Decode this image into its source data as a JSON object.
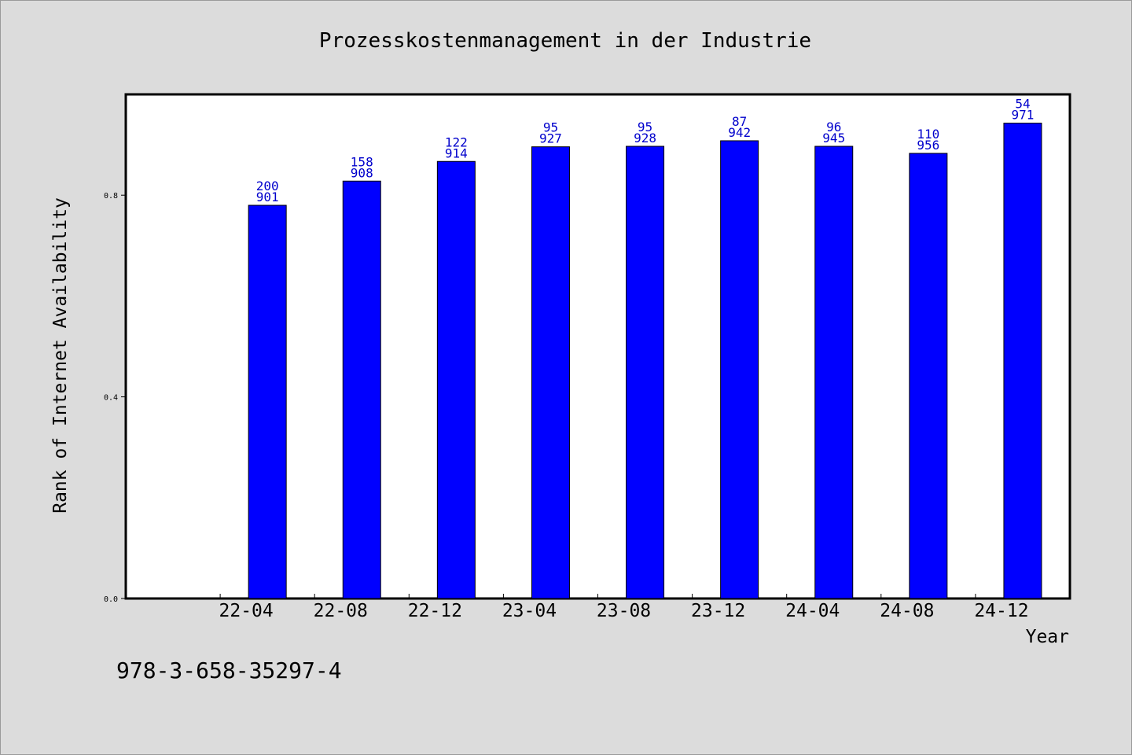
{
  "chart_data": {
    "type": "bar",
    "title": "Prozesskostenmanagement in der Industrie",
    "xlabel": "Year",
    "ylabel": "Rank of Internet Availability",
    "categories": [
      "22-04",
      "22-08",
      "22-12",
      "23-04",
      "23-08",
      "23-12",
      "24-04",
      "24-08",
      "24-12"
    ],
    "values": [
      0.78,
      0.828,
      0.867,
      0.896,
      0.897,
      0.908,
      0.897,
      0.883,
      0.943
    ],
    "rank_labels": [
      "200",
      "158",
      "122",
      "95",
      "95",
      "87",
      "96",
      "110",
      "54"
    ],
    "value_labels": [
      "901",
      "908",
      "914",
      "927",
      "928",
      "942",
      "945",
      "956",
      "971"
    ],
    "ylim": [
      0,
      1.0
    ],
    "yticks": [
      0.0,
      0.4,
      0.8
    ],
    "ytick_labels": [
      "0.0",
      "0.4",
      "0.8"
    ],
    "grid": false,
    "bar_color": "#0000ff",
    "label_color": "#0000cc"
  },
  "footer": {
    "isbn": "978-3-658-35297-4"
  }
}
